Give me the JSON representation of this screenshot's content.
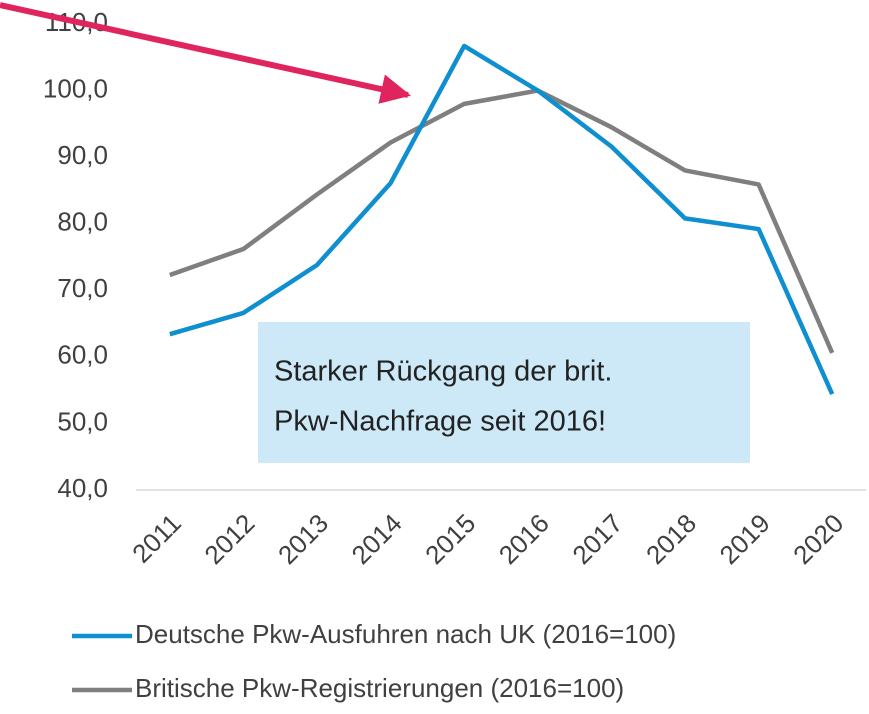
{
  "chart_data": {
    "type": "line",
    "categories": [
      "2011",
      "2012",
      "2013",
      "2014",
      "2015",
      "2016",
      "2017",
      "2018",
      "2019",
      "2020"
    ],
    "series": [
      {
        "name": "Deutsche Pkw-Ausfuhren nach UK (2016=100)",
        "color": "#0f8fd0",
        "values": [
          63.4,
          66.6,
          73.8,
          86.1,
          106.7,
          100,
          91.6,
          80.8,
          79.2,
          54.4
        ]
      },
      {
        "name": "Britische Pkw-Registrierungen (2016=100)",
        "color": "#7f7f7f",
        "values": [
          72.3,
          76.2,
          84.4,
          92.2,
          98.0,
          100,
          94.5,
          88.0,
          85.9,
          60.6
        ]
      }
    ],
    "ylim": [
      40,
      110
    ],
    "yticks": [
      {
        "value": 40,
        "label": "40,0"
      },
      {
        "value": 50,
        "label": "50,0"
      },
      {
        "value": 60,
        "label": "60,0"
      },
      {
        "value": 70,
        "label": "70,0"
      },
      {
        "value": 80,
        "label": "80,0"
      },
      {
        "value": 90,
        "label": "90,0"
      },
      {
        "value": 100,
        "label": "100,0"
      },
      {
        "value": 110,
        "label": "110,0"
      }
    ],
    "annotation": [
      "Starker Rückgang der brit.",
      "Pkw-Nachfrage seit 2016!"
    ],
    "legend": "bottom"
  }
}
